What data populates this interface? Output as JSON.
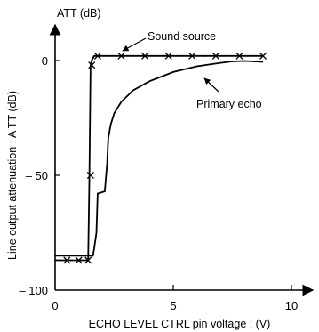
{
  "chart_data": {
    "type": "line",
    "title": "",
    "xlabel": "ECHO  LEVEL  CTRL pin voltage : (V)",
    "ylabel": "Line output attenuation : A TT (dB)",
    "y_unit_label": "ATT (dB)",
    "xlim": [
      0,
      11
    ],
    "ylim": [
      -100,
      12
    ],
    "x_ticks": [
      {
        "value": 0,
        "label": "0"
      },
      {
        "value": 5,
        "label": "5"
      },
      {
        "value": 10,
        "label": "10"
      }
    ],
    "y_ticks": [
      {
        "value": 0,
        "label": "0"
      },
      {
        "value": -50,
        "label": "– 50"
      },
      {
        "value": -100,
        "label": "– 100"
      }
    ],
    "grid": false,
    "series": [
      {
        "name": "Sound source",
        "marker": "x",
        "x": [
          0,
          0.5,
          1.0,
          1.4,
          1.45,
          1.5,
          1.55,
          1.65,
          1.8,
          2.8,
          3.8,
          4.8,
          5.8,
          6.8,
          7.8,
          8.8
        ],
        "y": [
          -87,
          -87,
          -87,
          -87,
          -50,
          -2,
          0,
          2,
          2,
          2,
          2,
          2,
          2,
          2,
          2,
          2
        ],
        "marker_x": [
          0.5,
          1.0,
          1.4,
          1.5,
          1.55,
          1.8,
          2.8,
          3.8,
          4.8,
          5.8,
          6.8,
          7.8,
          8.8
        ],
        "marker_y": [
          -87,
          -87,
          -87,
          -50,
          -2,
          2,
          2,
          2,
          2,
          2,
          2,
          2,
          2
        ]
      },
      {
        "name": "Primary echo",
        "marker": "none",
        "x": [
          0,
          1.6,
          1.65,
          1.75,
          1.8,
          2.1,
          2.2,
          2.25,
          2.35,
          2.5,
          2.8,
          3.3,
          4.0,
          5.0,
          6.0,
          7.0,
          7.5,
          8.0,
          8.8
        ],
        "y": [
          -85,
          -85,
          -82,
          -75,
          -58,
          -57,
          -45,
          -34,
          -28,
          -23,
          -18,
          -13,
          -9,
          -5,
          -2.5,
          -1,
          -0.4,
          -0.2,
          -0.6
        ]
      }
    ],
    "annotations": [
      {
        "text": "Sound source",
        "series": "Sound source"
      },
      {
        "text": "Primary echo",
        "series": "Primary echo"
      }
    ]
  }
}
